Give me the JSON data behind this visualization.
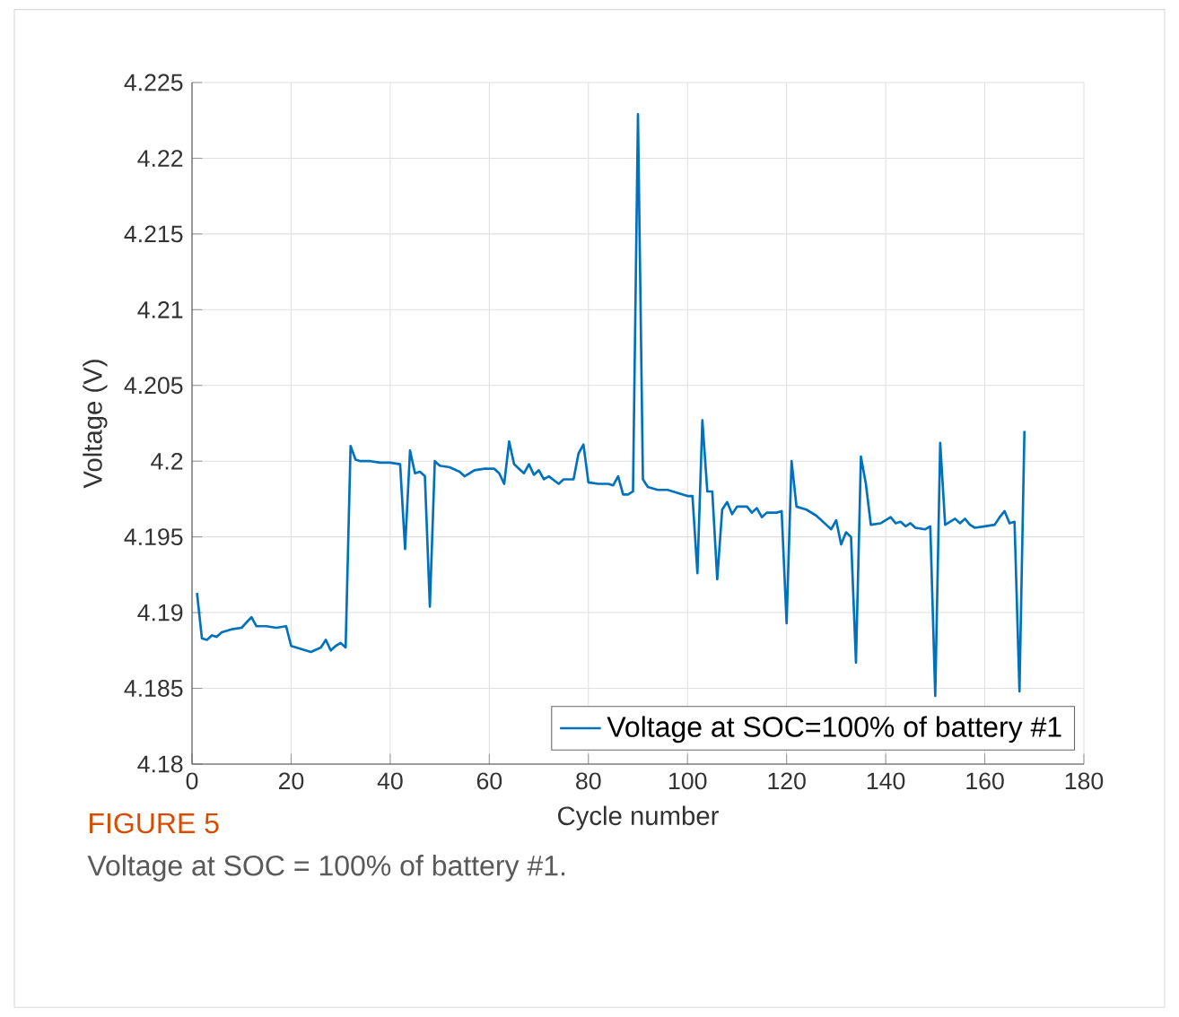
{
  "chart_data": {
    "type": "line",
    "xlabel": "Cycle number",
    "ylabel": "Voltage (V)",
    "annotations": [
      "FIGURE 5",
      "Voltage at SOC = 100% of battery #1."
    ],
    "xlim": [
      0,
      180
    ],
    "xticks": [
      0,
      20,
      40,
      60,
      80,
      100,
      120,
      140,
      160,
      180
    ],
    "ylim": [
      4.18,
      4.225
    ],
    "yticks": [
      4.18,
      4.185,
      4.19,
      4.195,
      4.2,
      4.205,
      4.21,
      4.215,
      4.22,
      4.225
    ],
    "grid": true,
    "legend": "bottom right",
    "marker": "none",
    "line_style": "solid",
    "series": [
      {
        "name": "Voltage at SOC=100% of battery #1",
        "color": "#0072bd",
        "x": [
          1,
          2,
          3,
          4,
          5,
          6,
          8,
          10,
          12,
          13,
          15,
          17,
          19,
          20,
          22,
          24,
          26,
          27,
          28,
          29,
          30,
          31,
          32,
          33,
          34,
          36,
          38,
          40,
          42,
          43,
          44,
          45,
          46,
          47,
          48,
          49,
          50,
          52,
          54,
          55,
          57,
          59,
          61,
          62,
          63,
          64,
          65,
          66,
          67,
          68,
          69,
          70,
          71,
          72,
          74,
          75,
          77,
          78,
          79,
          80,
          82,
          84,
          85,
          86,
          87,
          88,
          89,
          90,
          91,
          92,
          94,
          96,
          98,
          100,
          101,
          102,
          103,
          104,
          105,
          106,
          107,
          108,
          109,
          110,
          112,
          113,
          114,
          115,
          116,
          118,
          119,
          120,
          121,
          122,
          124,
          126,
          128,
          129,
          130,
          131,
          132,
          133,
          134,
          135,
          136,
          137,
          139,
          141,
          142,
          143,
          144,
          145,
          146,
          148,
          149,
          150,
          151,
          152,
          153,
          154,
          155,
          156,
          157,
          158,
          160,
          162,
          163,
          164,
          165,
          166,
          167,
          168
        ],
        "values": [
          4.1913,
          4.1883,
          4.1882,
          4.1885,
          4.1884,
          4.1887,
          4.1889,
          4.189,
          4.1897,
          4.1891,
          4.1891,
          4.189,
          4.1891,
          4.1878,
          4.1876,
          4.1874,
          4.1877,
          4.1882,
          4.1875,
          4.1878,
          4.188,
          4.1877,
          4.201,
          4.2001,
          4.2,
          4.2,
          4.1999,
          4.1999,
          4.1998,
          4.1942,
          4.2007,
          4.1992,
          4.1993,
          4.199,
          4.1904,
          4.2,
          4.1997,
          4.1996,
          4.1993,
          4.199,
          4.1994,
          4.1995,
          4.1995,
          4.1992,
          4.1985,
          4.2013,
          4.1998,
          4.1995,
          4.1992,
          4.1998,
          4.1991,
          4.1994,
          4.1988,
          4.199,
          4.1985,
          4.1988,
          4.1988,
          4.2005,
          4.2011,
          4.1986,
          4.1985,
          4.1985,
          4.1984,
          4.199,
          4.1978,
          4.1978,
          4.198,
          4.2229,
          4.1988,
          4.1983,
          4.1981,
          4.1981,
          4.1979,
          4.1977,
          4.1977,
          4.1926,
          4.2027,
          4.198,
          4.198,
          4.1922,
          4.1968,
          4.1973,
          4.1965,
          4.197,
          4.197,
          4.1966,
          4.1969,
          4.1963,
          4.1966,
          4.1966,
          4.1967,
          4.1893,
          4.2,
          4.197,
          4.1968,
          4.1964,
          4.1958,
          4.1955,
          4.1961,
          4.1945,
          4.1953,
          4.195,
          4.1867,
          4.2003,
          4.1985,
          4.1958,
          4.1959,
          4.1963,
          4.1959,
          4.196,
          4.1957,
          4.1959,
          4.1956,
          4.1955,
          4.1957,
          4.1845,
          4.2012,
          4.1958,
          4.196,
          4.1962,
          4.1959,
          4.1962,
          4.1958,
          4.1956,
          4.1957,
          4.1958,
          4.1963,
          4.1967,
          4.1959,
          4.196,
          4.1848,
          4.202
        ]
      }
    ]
  }
}
